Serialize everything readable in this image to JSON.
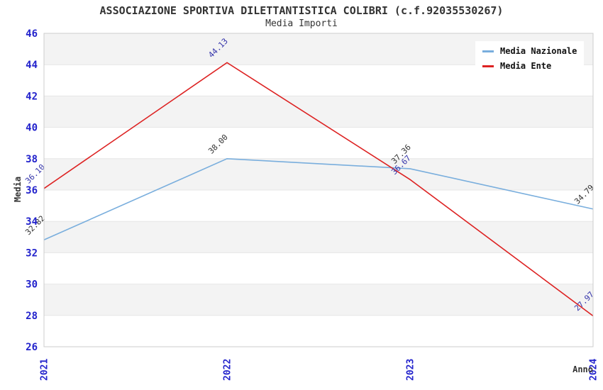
{
  "chart_data": {
    "type": "line",
    "title": "ASSOCIAZIONE SPORTIVA DILETTANTISTICA COLIBRI (c.f.92035530267)",
    "subtitle": "Media Importi",
    "xlabel": "Anno",
    "ylabel": "Media",
    "categories": [
      "2021",
      "2022",
      "2023",
      "2024"
    ],
    "series": [
      {
        "name": "Media Nazionale",
        "color": "#79aedd",
        "label_color": "#333333",
        "values": [
          32.82,
          38.0,
          37.36,
          34.79
        ]
      },
      {
        "name": "Media Ente",
        "color": "#dd2222",
        "label_color": "#3333aa",
        "values": [
          36.1,
          44.13,
          36.67,
          27.97
        ]
      }
    ],
    "ylim": [
      26,
      46
    ],
    "ytick_step": 2,
    "y_ticks": [
      26,
      28,
      30,
      32,
      34,
      36,
      38,
      40,
      42,
      44,
      46
    ],
    "grid": "horizontal-bands",
    "legend_position": "top-right",
    "colors": {
      "tick_label": "#2222cc",
      "band": "#f3f3f3",
      "band_edge": "#e6e6e6",
      "plot_border": "#cccccc",
      "title": "#333333",
      "legend_text": "#111111",
      "background": "#ffffff"
    }
  }
}
